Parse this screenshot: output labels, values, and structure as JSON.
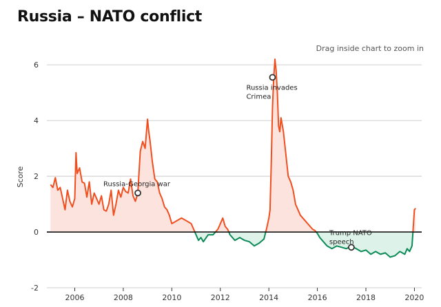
{
  "header": {
    "title": "Russia – NATO conflict",
    "zoom_hint": "Drag inside chart to zoom in"
  },
  "chart_data": {
    "type": "area",
    "title": "Russia – NATO conflict",
    "xlabel": "",
    "ylabel": "Score",
    "xlim": [
      2004.85,
      2020.3
    ],
    "ylim": [
      -2,
      6.3
    ],
    "yticks": [
      -2,
      0,
      2,
      4,
      6
    ],
    "ytick_labels": [
      "-2",
      "0",
      "2",
      "4",
      "6"
    ],
    "xticks": [
      2006,
      2008,
      2010,
      2012,
      2014,
      2016,
      2018,
      2020
    ],
    "xtick_labels": [
      "2006",
      "2008",
      "2010",
      "2012",
      "2014",
      "2016",
      "2018",
      "2020"
    ],
    "grid": true,
    "colors": {
      "positive_line": "#f04e1e",
      "positive_fill": "#fde3de",
      "negative_line": "#0b8a57",
      "negative_fill": "#ddf2e8",
      "zero_line": "#000000",
      "grid": "#000000"
    },
    "series": [
      {
        "name": "Score",
        "x": [
          2005.0,
          2005.1,
          2005.2,
          2005.3,
          2005.4,
          2005.5,
          2005.6,
          2005.7,
          2005.8,
          2005.9,
          2006.0,
          2006.05,
          2006.1,
          2006.2,
          2006.3,
          2006.4,
          2006.5,
          2006.6,
          2006.7,
          2006.8,
          2006.9,
          2007.0,
          2007.1,
          2007.2,
          2007.3,
          2007.4,
          2007.5,
          2007.6,
          2007.7,
          2007.8,
          2007.9,
          2008.0,
          2008.1,
          2008.2,
          2008.3,
          2008.4,
          2008.5,
          2008.6,
          2008.7,
          2008.8,
          2008.9,
          2009.0,
          2009.05,
          2009.1,
          2009.2,
          2009.3,
          2009.4,
          2009.5,
          2009.6,
          2009.7,
          2009.8,
          2009.9,
          2010.0,
          2010.2,
          2010.4,
          2010.6,
          2010.8,
          2011.0,
          2011.1,
          2011.2,
          2011.3,
          2011.5,
          2011.7,
          2011.9,
          2012.0,
          2012.1,
          2012.2,
          2012.3,
          2012.4,
          2012.6,
          2012.8,
          2013.0,
          2013.2,
          2013.4,
          2013.6,
          2013.8,
          2013.9,
          2014.0,
          2014.05,
          2014.1,
          2014.15,
          2014.2,
          2014.25,
          2014.3,
          2014.35,
          2014.4,
          2014.45,
          2014.5,
          2014.6,
          2014.7,
          2014.8,
          2014.9,
          2015.0,
          2015.1,
          2015.2,
          2015.3,
          2015.4,
          2015.5,
          2015.6,
          2015.7,
          2015.8,
          2015.9,
          2016.0,
          2016.1,
          2016.2,
          2016.4,
          2016.6,
          2016.8,
          2017.0,
          2017.2,
          2017.4,
          2017.6,
          2017.8,
          2018.0,
          2018.2,
          2018.4,
          2018.6,
          2018.8,
          2019.0,
          2019.2,
          2019.4,
          2019.6,
          2019.7,
          2019.8,
          2019.9,
          2020.0,
          2020.05
        ],
        "values": [
          1.7,
          1.6,
          1.95,
          1.5,
          1.6,
          1.2,
          0.8,
          1.5,
          1.1,
          0.9,
          1.2,
          2.85,
          2.1,
          2.3,
          1.8,
          1.75,
          1.25,
          1.8,
          1.0,
          1.4,
          1.2,
          1.0,
          1.3,
          0.8,
          0.75,
          1.0,
          1.5,
          0.6,
          1.0,
          1.5,
          1.25,
          1.6,
          1.45,
          1.4,
          1.9,
          1.3,
          1.1,
          1.4,
          2.9,
          3.25,
          3.0,
          4.05,
          3.6,
          3.3,
          2.5,
          1.9,
          1.8,
          1.4,
          1.2,
          0.9,
          0.8,
          0.6,
          0.3,
          0.4,
          0.5,
          0.4,
          0.3,
          -0.1,
          -0.3,
          -0.2,
          -0.35,
          -0.1,
          -0.1,
          0.1,
          0.3,
          0.5,
          0.2,
          0.1,
          -0.1,
          -0.3,
          -0.2,
          -0.3,
          -0.35,
          -0.5,
          -0.4,
          -0.25,
          0.1,
          0.5,
          0.8,
          2.5,
          4.5,
          5.5,
          6.2,
          5.8,
          5.0,
          3.8,
          3.6,
          4.1,
          3.6,
          2.8,
          2.0,
          1.8,
          1.5,
          1.0,
          0.8,
          0.6,
          0.5,
          0.4,
          0.3,
          0.2,
          0.1,
          0.05,
          -0.05,
          -0.2,
          -0.3,
          -0.5,
          -0.6,
          -0.5,
          -0.55,
          -0.6,
          -0.5,
          -0.6,
          -0.7,
          -0.65,
          -0.8,
          -0.7,
          -0.8,
          -0.75,
          -0.9,
          -0.85,
          -0.7,
          -0.8,
          -0.6,
          -0.7,
          -0.5,
          0.8,
          0.85
        ]
      }
    ],
    "annotations": [
      {
        "label": "Russia-Georgia war",
        "x": 2008.6,
        "y": 1.4
      },
      {
        "label": "Russia invades Crimea",
        "x": 2014.15,
        "y": 5.55
      },
      {
        "label": "Trump NATO speech",
        "x": 2017.4,
        "y": -0.55
      }
    ],
    "annotation_lines": [
      [
        "Russia-Georgia war"
      ],
      [
        "Russia invades",
        "Crimea"
      ],
      [
        "Trump NATO",
        "speech"
      ]
    ]
  }
}
